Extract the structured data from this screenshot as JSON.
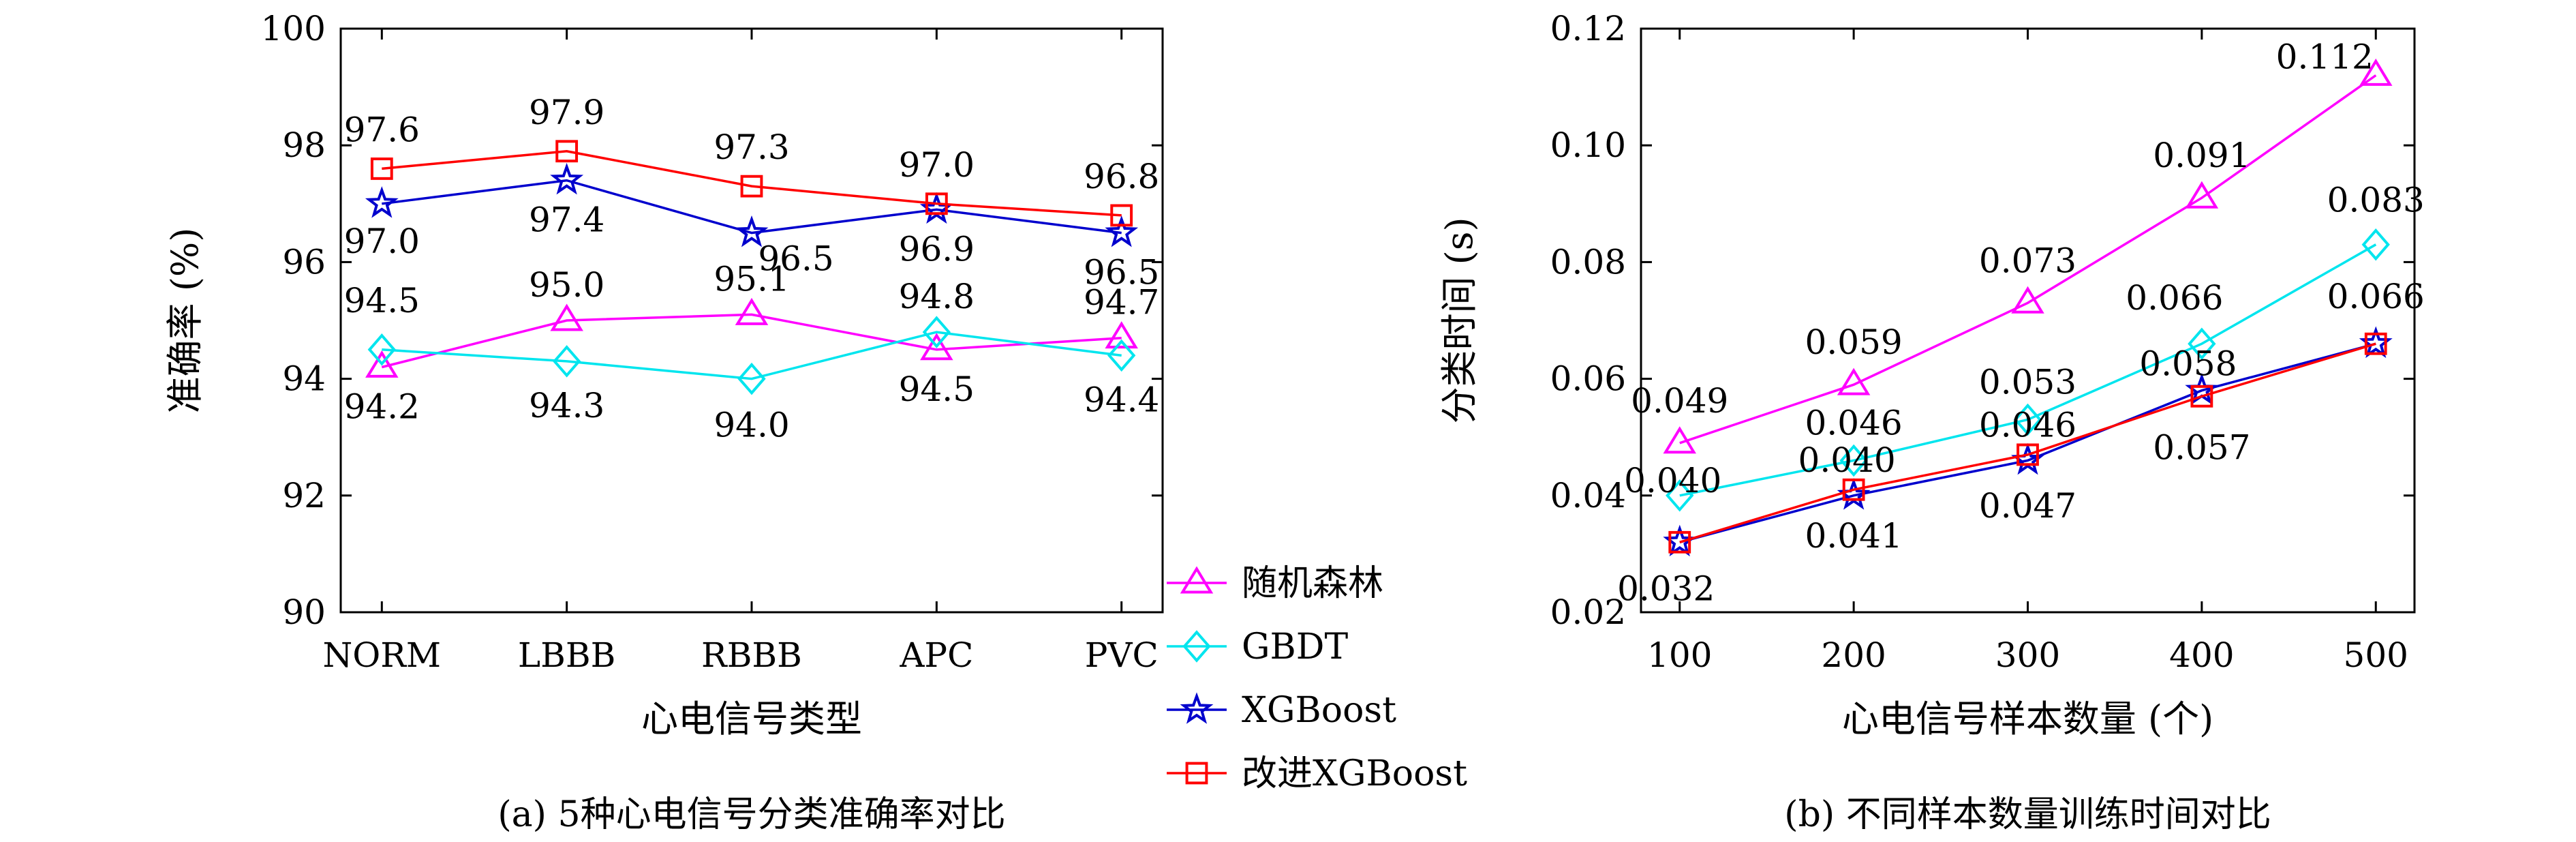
{
  "chart_data": [
    {
      "type": "line",
      "caption": "(a) 5种心电信号分类准确率对比",
      "xlabel": "心电信号类型",
      "ylabel": "准确率 (%)",
      "categories": [
        "NORM",
        "LBBB",
        "RBBB",
        "APC",
        "PVC"
      ],
      "ylim": [
        90,
        100
      ],
      "yticks": [
        90,
        92,
        94,
        96,
        98,
        100
      ],
      "ytick_labels": [
        "90",
        "92",
        "94",
        "96",
        "98",
        "100"
      ],
      "grid": false,
      "series": [
        {
          "name": "随机森林",
          "color": "#ff00ff",
          "marker": "triangle",
          "values": [
            94.2,
            95.0,
            95.1,
            94.5,
            94.7
          ],
          "labels": [
            "94.2",
            "95.0",
            "95.1",
            "94.5",
            "94.7"
          ]
        },
        {
          "name": "GBDT",
          "color": "#00e5ee",
          "marker": "diamond",
          "values": [
            94.5,
            94.3,
            94.0,
            94.8,
            94.4
          ],
          "labels": [
            "94.5",
            "94.3",
            "94.0",
            "94.8",
            "94.4"
          ]
        },
        {
          "name": "XGBoost",
          "color": "#0000cd",
          "marker": "star",
          "values": [
            97.0,
            97.4,
            96.5,
            96.9,
            96.5
          ],
          "labels": [
            "97.0",
            "97.4",
            "96.5",
            "96.9",
            "96.5"
          ]
        },
        {
          "name": "改进XGBoost",
          "color": "#ff0000",
          "marker": "square",
          "values": [
            97.6,
            97.9,
            97.3,
            97.0,
            96.8
          ],
          "labels": [
            "97.6",
            "97.9",
            "97.3",
            "97.0",
            "96.8"
          ]
        }
      ]
    },
    {
      "type": "line",
      "caption": "(b) 不同样本数量训练时间对比",
      "xlabel": "心电信号样本数量 (个)",
      "ylabel": "分类时间 (s)",
      "x": [
        100,
        200,
        300,
        400,
        500
      ],
      "xtick_labels": [
        "100",
        "200",
        "300",
        "400",
        "500"
      ],
      "ylim": [
        0.02,
        0.12
      ],
      "yticks": [
        0.02,
        0.04,
        0.06,
        0.08,
        0.1,
        0.12
      ],
      "ytick_labels": [
        "0.02",
        "0.04",
        "0.06",
        "0.08",
        "0.10",
        "0.12"
      ],
      "grid": false,
      "series": [
        {
          "name": "随机森林",
          "color": "#ff00ff",
          "marker": "triangle",
          "values": [
            0.049,
            0.059,
            0.073,
            0.091,
            0.112
          ],
          "labels": [
            "0.049",
            "0.059",
            "0.073",
            "0.091",
            "0.112"
          ]
        },
        {
          "name": "GBDT",
          "color": "#00e5ee",
          "marker": "diamond",
          "values": [
            0.04,
            0.046,
            0.053,
            0.066,
            0.083
          ],
          "labels": [
            "0.040",
            "0.046",
            "0.053",
            "0.066",
            "0.083"
          ]
        },
        {
          "name": "XGBoost",
          "color": "#0000cd",
          "marker": "star",
          "values": [
            0.032,
            0.04,
            0.046,
            0.058,
            0.066
          ],
          "labels": [
            "0.032",
            "0.040",
            "0.046",
            "0.058",
            "0.066"
          ]
        },
        {
          "name": "改进XGBoost",
          "color": "#ff0000",
          "marker": "square",
          "values": [
            0.032,
            0.041,
            0.047,
            0.057,
            0.066
          ],
          "labels": [
            "",
            "0.041",
            "0.047",
            "0.057",
            ""
          ]
        }
      ]
    }
  ],
  "legend": {
    "placement": "center-between-panels",
    "entries": [
      {
        "name": "随机森林",
        "color": "#ff00ff",
        "marker": "triangle"
      },
      {
        "name": "GBDT",
        "color": "#00e5ee",
        "marker": "diamond"
      },
      {
        "name": "XGBoost",
        "color": "#0000cd",
        "marker": "star"
      },
      {
        "name": "改进XGBoost",
        "color": "#ff0000",
        "marker": "square"
      }
    ]
  }
}
